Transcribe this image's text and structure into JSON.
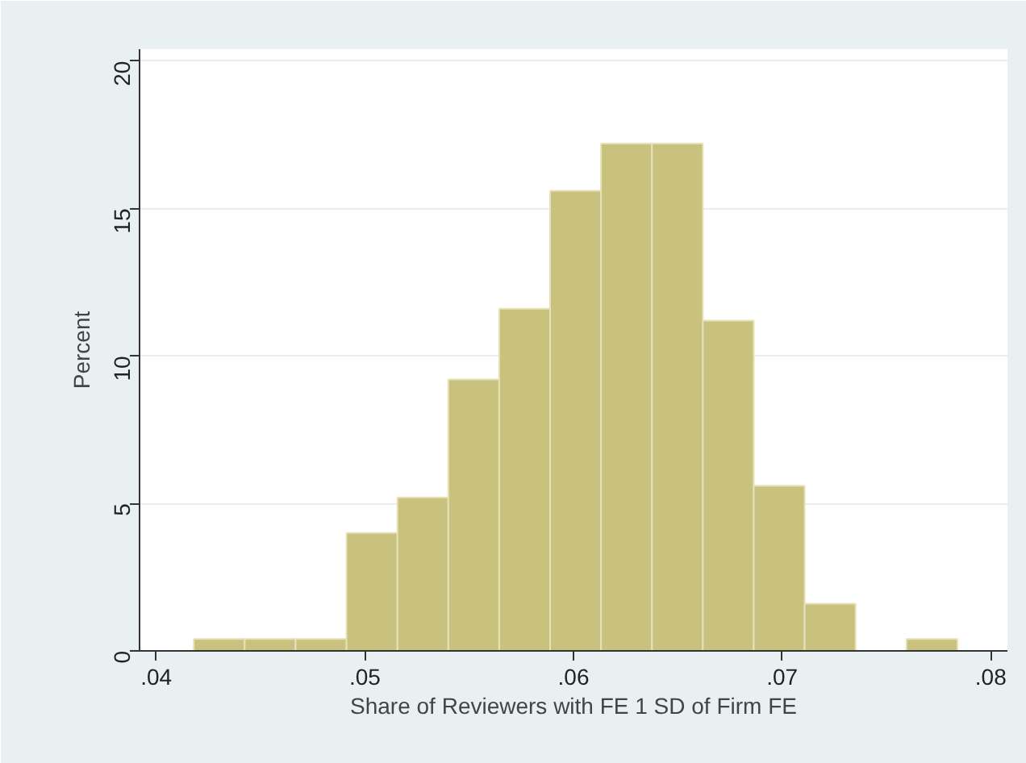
{
  "chart_data": {
    "type": "histogram",
    "xlabel": "Share of Reviewers with FE 1 SD of Firm FE",
    "ylabel": "Percent",
    "bins": [
      0.0418,
      0.04424,
      0.04668,
      0.04912,
      0.05156,
      0.054,
      0.05644,
      0.05888,
      0.06132,
      0.06376,
      0.0662,
      0.06864,
      0.07108,
      0.07352,
      0.07596,
      0.0784
    ],
    "values": [
      0.4,
      0.4,
      0.4,
      4.0,
      5.2,
      9.2,
      11.6,
      15.6,
      17.2,
      17.2,
      11.2,
      5.6,
      1.6,
      0,
      0.4
    ],
    "color": "#c9c27e",
    "xlim": [
      0.0392,
      0.0808
    ],
    "ylim": [
      0,
      20.4
    ],
    "xticks": [
      {
        "value": 0.04,
        "label": ".04"
      },
      {
        "value": 0.05,
        "label": ".05"
      },
      {
        "value": 0.06,
        "label": ".06"
      },
      {
        "value": 0.07,
        "label": ".07"
      },
      {
        "value": 0.08,
        "label": ".08"
      }
    ],
    "yticks": [
      0,
      5,
      10,
      15,
      20
    ],
    "grid": "y"
  }
}
